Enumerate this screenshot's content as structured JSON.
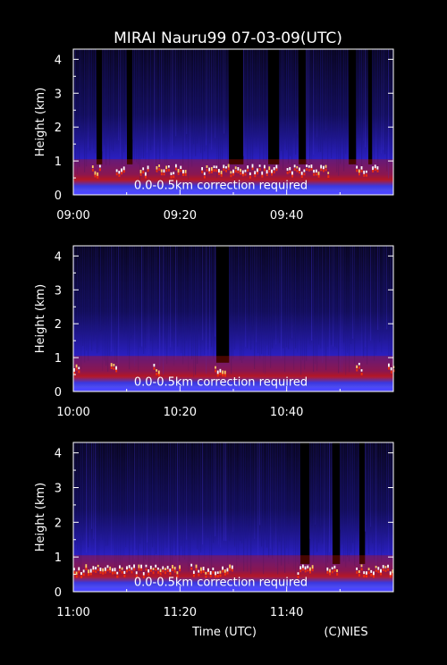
{
  "title": "MIRAI Nauru99 07-03-09(UTC)",
  "footer": {
    "xlabel": "Time (UTC)",
    "credit": "(C)NIES"
  },
  "colors": {
    "background": "#000000",
    "text": "#ffffff",
    "cloud": "#ffffff",
    "aerosol": "#cc1100",
    "clear_air": "#2a1fbf"
  },
  "chart_data": [
    {
      "type": "heatmap",
      "ylabel": "Height (km)",
      "ylim": [
        0,
        4.3
      ],
      "yticks": [
        "0",
        "1",
        "2",
        "3",
        "4"
      ],
      "xlim": [
        0,
        60
      ],
      "xticks": [
        "09:00",
        "09:20",
        "09:40"
      ],
      "annotation": "0.0-0.5km correction required",
      "cloud_base_km": 0.7,
      "cloud_intervals_min": [
        [
          3.5,
          5
        ],
        [
          8,
          9.5
        ],
        [
          12.5,
          14
        ],
        [
          15.5,
          21
        ],
        [
          24,
          38
        ],
        [
          40,
          48
        ],
        [
          53,
          55
        ],
        [
          56,
          57
        ]
      ],
      "blocked_intervals_min": [
        [
          4.2,
          5.3
        ],
        [
          10.2,
          11.2
        ],
        [
          29,
          32
        ],
        [
          36.5,
          38.5
        ],
        [
          42.3,
          43.5
        ],
        [
          51.5,
          53
        ],
        [
          55.2,
          56
        ]
      ]
    },
    {
      "type": "heatmap",
      "ylabel": "Height (km)",
      "ylim": [
        0,
        4.3
      ],
      "yticks": [
        "0",
        "1",
        "2",
        "3",
        "4"
      ],
      "xlim": [
        0,
        60
      ],
      "xticks": [
        "10:00",
        "10:20",
        "10:40"
      ],
      "annotation": "0.0-0.5km correction required",
      "cloud_base_km": 0.65,
      "cloud_intervals_min": [
        [
          0,
          1
        ],
        [
          7,
          8
        ],
        [
          15,
          16
        ],
        [
          26.5,
          28.5
        ],
        [
          53,
          54
        ],
        [
          59,
          60
        ]
      ],
      "blocked_intervals_min": [
        [
          26.8,
          29.2
        ]
      ]
    },
    {
      "type": "heatmap",
      "ylabel": "Height (km)",
      "ylim": [
        0,
        4.3
      ],
      "yticks": [
        "0",
        "1",
        "2",
        "3",
        "4"
      ],
      "xlim": [
        0,
        60
      ],
      "xticks": [
        "11:00",
        "11:20",
        "11:40"
      ],
      "annotation": "0.0-0.5km correction required",
      "cloud_base_km": 0.6,
      "cloud_intervals_min": [
        [
          0,
          20
        ],
        [
          22,
          30
        ],
        [
          42,
          45
        ],
        [
          47.5,
          49.5
        ],
        [
          53,
          60
        ]
      ],
      "blocked_intervals_min": [
        [
          42.5,
          44.3
        ],
        [
          48.5,
          49.8
        ],
        [
          53.5,
          54.8
        ]
      ]
    }
  ]
}
